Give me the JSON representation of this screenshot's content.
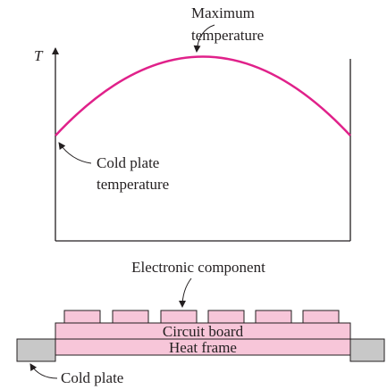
{
  "axis_label": "T",
  "max_label": [
    "Maximum",
    "temperature"
  ],
  "cold_plate_temp_label": [
    "Cold plate",
    "temperature"
  ],
  "component_label": "Electronic component",
  "circuit_board": "Circuit board",
  "heat_frame": "Heat frame",
  "cold_plate": "Cold plate"
}
